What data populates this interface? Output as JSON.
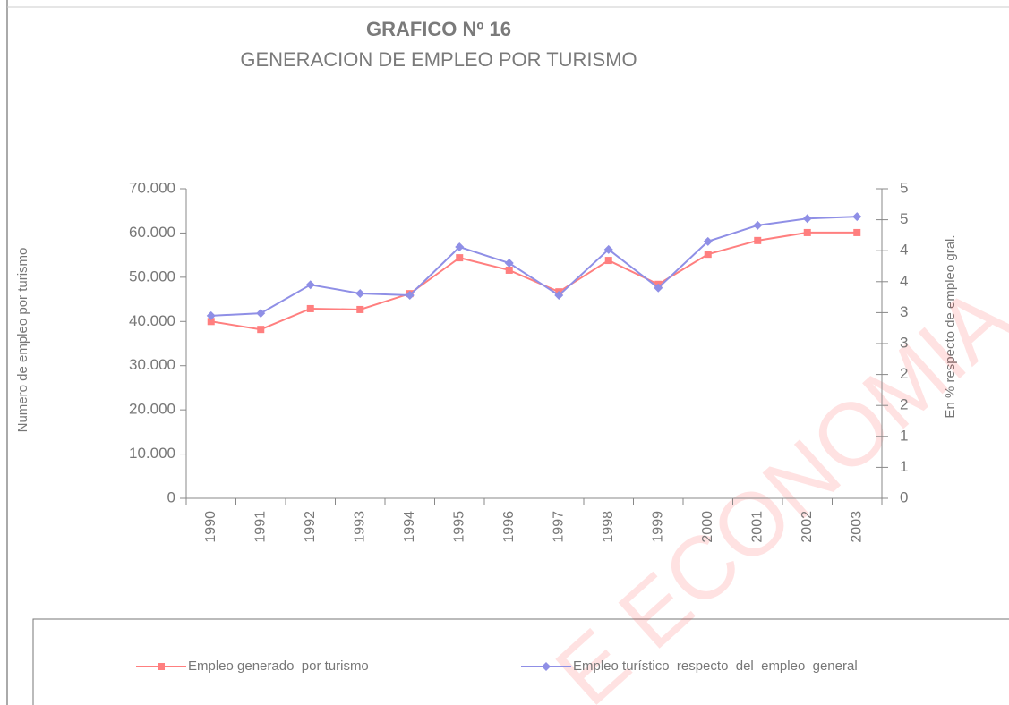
{
  "chart_data": {
    "type": "line",
    "title": "GRAFICO Nº 16",
    "subtitle": "GENERACION DE EMPLEO POR TURISMO",
    "y_label": "Numero de empleo por turismo",
    "y2_label": "En % respecto de empleo gral.",
    "watermark": "E ECONOMIA",
    "categories": [
      "1990",
      "1991",
      "1992",
      "1993",
      "1994",
      "1995",
      "1996",
      "1997",
      "1998",
      "1999",
      "2000",
      "2001",
      "2002",
      "2003"
    ],
    "series": [
      {
        "name": "Empleo generado  por turismo",
        "color": "#ff7f7f",
        "marker": "square",
        "values": [
          40000,
          38200,
          42900,
          42700,
          46300,
          54400,
          51600,
          46700,
          53800,
          48400,
          55200,
          58300,
          60100,
          60100
        ]
      },
      {
        "name": "Empleo turístico  respecto  del  empleo  general",
        "color": "#8f8fe6",
        "marker": "diamond",
        "axis": "y2",
        "values": [
          2.95,
          2.99,
          3.45,
          3.31,
          3.28,
          4.06,
          3.8,
          3.28,
          4.02,
          3.4,
          4.15,
          4.41,
          4.52,
          4.55
        ]
      }
    ],
    "ylim": [
      0,
      70000
    ],
    "yticks": [
      {
        "value": 0,
        "label": "0"
      },
      {
        "value": 10000,
        "label": "10.000"
      },
      {
        "value": 20000,
        "label": "20.000"
      },
      {
        "value": 30000,
        "label": "30.000"
      },
      {
        "value": 40000,
        "label": "40.000"
      },
      {
        "value": 50000,
        "label": "50.000"
      },
      {
        "value": 60000,
        "label": "60.000"
      },
      {
        "value": 70000,
        "label": "70.000"
      }
    ],
    "y2lim": [
      0,
      5
    ],
    "y2ticks": [
      0,
      {
        "value": 0.5,
        "label": "1"
      },
      1,
      {
        "value": 1.5,
        "label": "2"
      },
      2,
      {
        "value": 2.5,
        "label": "3"
      },
      3,
      {
        "value": 3.5,
        "label": "4"
      },
      4,
      {
        "value": 4.5,
        "label": "5"
      },
      5
    ],
    "legend": "bottom"
  }
}
